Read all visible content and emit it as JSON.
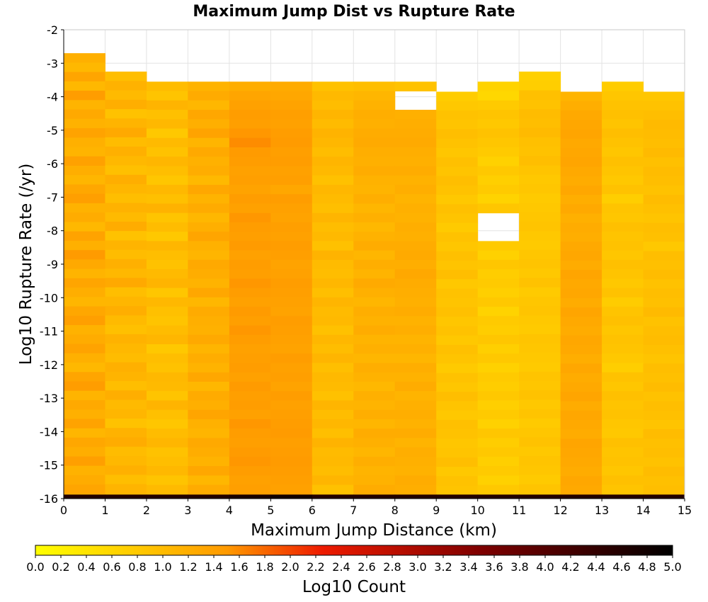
{
  "chart_data": {
    "type": "heatmap",
    "title": "Maximum Jump Dist vs Rupture Rate",
    "xlabel": "Maximum Jump Distance (km)",
    "ylabel": "Log10 Rupture Rate (/yr)",
    "xlim": [
      0,
      15
    ],
    "ylim": [
      -16,
      -2
    ],
    "x_bin_width": 1,
    "y_bin_height": 0.28,
    "x_ticks": [
      "0",
      "1",
      "2",
      "3",
      "4",
      "5",
      "6",
      "7",
      "8",
      "9",
      "10",
      "11",
      "12",
      "13",
      "14",
      "15"
    ],
    "y_ticks": [
      "-2",
      "-3",
      "-4",
      "-5",
      "-6",
      "-7",
      "-8",
      "-9",
      "-10",
      "-11",
      "-12",
      "-13",
      "-14",
      "-15",
      "-16"
    ],
    "grid": true,
    "colorbar": {
      "label": "Log10 Count",
      "range": [
        0.0,
        5.0
      ],
      "colors": [
        "#ffff00",
        "#ff9a00",
        "#ee1b00",
        "#7e0000",
        "#000000"
      ],
      "color_stops": [
        0.0,
        0.3,
        0.45,
        0.7,
        1.0
      ],
      "tick_labels": [
        "0.0",
        "0.2",
        "0.4",
        "0.6",
        "0.8",
        "1.0",
        "1.2",
        "1.4",
        "1.6",
        "1.8",
        "2.0",
        "2.2",
        "2.4",
        "2.6",
        "2.8",
        "3.0",
        "3.2",
        "3.4",
        "3.6",
        "3.8",
        "4.0",
        "4.2",
        "4.4",
        "4.6",
        "4.8",
        "5.0"
      ]
    },
    "columns": [
      {
        "x": 0,
        "top": -2.7,
        "base": 1.3,
        "pattern": [
          0.3,
          0.1,
          0.55,
          0.1,
          0.75,
          0.2,
          0.45,
          0.25,
          0.6,
          0.3,
          0.2,
          0.65,
          0.35,
          0.15,
          0.5,
          0.7,
          0.25,
          0.4,
          0.1,
          0.6,
          0.3,
          0.8,
          0.45,
          0.2,
          0.55,
          0.35,
          0.15,
          0.5,
          0.7,
          0.25,
          0.4,
          0.6,
          0.3,
          0.1,
          0.55,
          0.75,
          0.2,
          0.45,
          0.3,
          0.6,
          0.15,
          0.5,
          0.35,
          0.7,
          0.25,
          0.4,
          0.55,
          0.2,
          0.6
        ]
      },
      {
        "x": 1,
        "top": -3.25,
        "base": 1.15,
        "pattern": [
          0.2,
          0.5,
          0.3,
          0.6,
          0.1,
          0.45,
          0.7,
          0.25,
          0.55,
          0.35,
          0.15,
          0.6,
          0.4,
          0.2,
          0.5,
          0.3,
          0.65,
          0.1,
          0.45,
          0.25,
          0.55,
          0.35,
          0.7,
          0.2,
          0.4,
          0.6,
          0.3,
          0.15,
          0.5,
          0.35,
          0.25,
          0.55,
          0.45,
          0.2,
          0.6,
          0.3,
          0.4,
          0.1,
          0.5,
          0.65,
          0.25,
          0.35,
          0.55,
          0.2,
          0.45,
          0.3,
          0.6,
          0.15,
          0.5
        ]
      },
      {
        "x": 2,
        "top": -3.55,
        "base": 1.05,
        "pattern": [
          0.4,
          0.2,
          0.6,
          0.3,
          0.5,
          0.1,
          0.45,
          0.25,
          0.55,
          0.35,
          0.15,
          0.5,
          0.3,
          0.65,
          0.2,
          0.4,
          0.1,
          0.55,
          0.35,
          0.25,
          0.45,
          0.6,
          0.15,
          0.5,
          0.3,
          0.2,
          0.4,
          0.55,
          0.1,
          0.35,
          0.25,
          0.5,
          0.45,
          0.2,
          0.6,
          0.3,
          0.15,
          0.4,
          0.55,
          0.25,
          0.35,
          0.5,
          0.2,
          0.45,
          0.3,
          0.6,
          0.1,
          0.4,
          0.5
        ]
      },
      {
        "x": 3,
        "top": -3.55,
        "base": 1.25,
        "pattern": [
          0.3,
          0.5,
          0.2,
          0.6,
          0.4,
          0.7,
          0.25,
          0.55,
          0.35,
          0.45,
          0.15,
          0.6,
          0.3,
          0.5,
          0.2,
          0.4,
          0.65,
          0.35,
          0.25,
          0.55,
          0.45,
          0.3,
          0.6,
          0.2,
          0.5,
          0.4,
          0.35,
          0.55,
          0.25,
          0.45,
          0.3,
          0.6,
          0.2,
          0.5,
          0.4,
          0.65,
          0.35,
          0.25,
          0.55,
          0.45,
          0.3,
          0.6,
          0.2,
          0.5,
          0.4,
          0.35,
          0.55,
          0.25,
          0.45
        ]
      },
      {
        "x": 4,
        "top": -3.55,
        "base": 1.4,
        "pattern": [
          0.2,
          0.4,
          0.5,
          0.6,
          0.55,
          0.7,
          0.8,
          0.65,
          0.6,
          0.5,
          0.55,
          0.45,
          0.6,
          0.5,
          0.7,
          0.6,
          0.55,
          0.65,
          0.5,
          0.6,
          0.55,
          0.7,
          0.6,
          0.5,
          0.65,
          0.55,
          0.7,
          0.6,
          0.5,
          0.55,
          0.6,
          0.5,
          0.65,
          0.55,
          0.6,
          0.5,
          0.7,
          0.6,
          0.55,
          0.65,
          0.7,
          0.6,
          0.5,
          0.55,
          0.65,
          0.6,
          0.5,
          0.55,
          0.6
        ]
      },
      {
        "x": 5,
        "top": -3.55,
        "base": 1.4,
        "pattern": [
          0.25,
          0.35,
          0.45,
          0.55,
          0.5,
          0.6,
          0.65,
          0.55,
          0.6,
          0.5,
          0.55,
          0.35,
          0.6,
          0.5,
          0.45,
          0.55,
          0.5,
          0.6,
          0.55,
          0.45,
          0.5,
          0.6,
          0.55,
          0.5,
          0.45,
          0.6,
          0.55,
          0.5,
          0.45,
          0.6,
          0.5,
          0.55,
          0.45,
          0.6,
          0.5,
          0.55,
          0.6,
          0.65,
          0.55,
          0.6,
          0.65,
          0.6,
          0.55,
          0.5,
          0.6,
          0.55,
          0.5,
          0.6,
          0.55
        ]
      },
      {
        "x": 6,
        "top": -3.55,
        "base": 1.1,
        "pattern": [
          0.2,
          0.4,
          0.3,
          0.5,
          0.35,
          0.55,
          0.45,
          0.3,
          0.5,
          0.4,
          0.2,
          0.45,
          0.35,
          0.25,
          0.5,
          0.3,
          0.4,
          0.2,
          0.55,
          0.35,
          0.3,
          0.45,
          0.25,
          0.5,
          0.35,
          0.4,
          0.2,
          0.45,
          0.3,
          0.5,
          0.25,
          0.4,
          0.35,
          0.2,
          0.5,
          0.3,
          0.45,
          0.25,
          0.55,
          0.35,
          0.4,
          0.3,
          0.5,
          0.2,
          0.45,
          0.35,
          0.25,
          0.4,
          0.3
        ]
      },
      {
        "x": 7,
        "top": -3.55,
        "base": 1.2,
        "pattern": [
          0.1,
          0.3,
          0.4,
          0.5,
          0.45,
          0.55,
          0.6,
          0.5,
          0.45,
          0.55,
          0.4,
          0.35,
          0.5,
          0.3,
          0.45,
          0.25,
          0.4,
          0.55,
          0.3,
          0.5,
          0.35,
          0.6,
          0.45,
          0.3,
          0.5,
          0.4,
          0.55,
          0.35,
          0.45,
          0.3,
          0.5,
          0.4,
          0.25,
          0.45,
          0.35,
          0.5,
          0.3,
          0.55,
          0.45,
          0.3,
          0.5,
          0.35,
          0.4,
          0.55,
          0.3,
          0.45,
          0.35,
          0.5,
          0.4
        ]
      },
      {
        "x": 8,
        "top": -3.55,
        "base": 1.2,
        "pattern": [
          0.0,
          0.1,
          0.35,
          0.45,
          0.5,
          0.55,
          0.6,
          0.5,
          0.45,
          0.55,
          0.4,
          0.5,
          0.35,
          0.45,
          0.4,
          0.5,
          0.45,
          0.55,
          0.6,
          0.5,
          0.65,
          0.55,
          0.5,
          0.45,
          0.55,
          0.4,
          0.5,
          0.35,
          0.45,
          0.3,
          0.5,
          0.4,
          0.55,
          0.35,
          0.45,
          0.5,
          0.4,
          0.55,
          0.35,
          0.5,
          0.45,
          0.4,
          0.55,
          0.5,
          0.35,
          0.45,
          0.4,
          0.5,
          0.45
        ]
      },
      {
        "x": 9,
        "top": -3.85,
        "base": 1.0,
        "pattern": [
          0.1,
          0.2,
          0.35,
          0.3,
          0.45,
          0.35,
          0.25,
          0.4,
          0.3,
          0.45,
          0.35,
          0.2,
          0.4,
          0.3,
          0.15,
          0.35,
          0.25,
          0.4,
          0.3,
          0.45,
          0.2,
          0.35,
          0.3,
          0.4,
          0.25,
          0.35,
          0.2,
          0.4,
          0.3,
          0.15,
          0.35,
          0.25,
          0.45,
          0.3,
          0.2,
          0.4,
          0.35,
          0.25,
          0.3,
          0.45,
          0.2,
          0.35,
          0.3,
          0.4,
          0.25,
          0.35,
          0.3,
          0.2,
          0.4
        ]
      },
      {
        "x": 10,
        "top": -3.55,
        "base": 0.9,
        "pattern": [
          0.1,
          0.0,
          0.3,
          0.45,
          0.35,
          0.5,
          0.4,
          0.3,
          0.15,
          0.35,
          0.2,
          0.3,
          0.1,
          0.4,
          0.25,
          0.35,
          0.2,
          0.3,
          0.15,
          0.4,
          0.25,
          0.3,
          0.2,
          0.35,
          0.1,
          0.3,
          0.25,
          0.4,
          0.2,
          0.35,
          0.15,
          0.3,
          0.25,
          0.35,
          0.2,
          0.3,
          0.15,
          0.4,
          0.25,
          0.35,
          0.2,
          0.3,
          0.15,
          0.35,
          0.25,
          0.3,
          0.2,
          0.35,
          0.3
        ]
      },
      {
        "x": 11,
        "top": -3.25,
        "base": 1.0,
        "pattern": [
          0.0,
          0.05,
          0.4,
          0.35,
          0.5,
          0.45,
          0.55,
          0.4,
          0.35,
          0.45,
          0.3,
          0.2,
          0.25,
          0.15,
          0.2,
          0.25,
          0.3,
          0.2,
          0.15,
          0.25,
          0.3,
          0.2,
          0.35,
          0.15,
          0.25,
          0.3,
          0.2,
          0.15,
          0.3,
          0.25,
          0.2,
          0.15,
          0.3,
          0.25,
          0.35,
          0.2,
          0.3,
          0.15,
          0.25,
          0.35,
          0.2,
          0.3,
          0.25,
          0.15,
          0.3,
          0.2,
          0.25,
          0.35,
          0.3
        ]
      },
      {
        "x": 12,
        "top": -3.85,
        "base": 1.3,
        "pattern": [
          0.2,
          0.35,
          0.45,
          0.5,
          0.55,
          0.45,
          0.5,
          0.55,
          0.45,
          0.4,
          0.5,
          0.35,
          0.45,
          0.3,
          0.4,
          0.35,
          0.45,
          0.5,
          0.4,
          0.55,
          0.45,
          0.5,
          0.4,
          0.55,
          0.45,
          0.4,
          0.5,
          0.45,
          0.35,
          0.5,
          0.4,
          0.45,
          0.55,
          0.4,
          0.5,
          0.45,
          0.4,
          0.55,
          0.5,
          0.45,
          0.4,
          0.5,
          0.45,
          0.35,
          0.5,
          0.4,
          0.45,
          0.5,
          0.4
        ]
      },
      {
        "x": 13,
        "top": -3.55,
        "base": 1.0,
        "pattern": [
          0.1,
          0.25,
          0.35,
          0.4,
          0.3,
          0.45,
          0.35,
          0.25,
          0.4,
          0.3,
          0.2,
          0.35,
          0.05,
          0.3,
          0.25,
          0.4,
          0.3,
          0.35,
          0.25,
          0.4,
          0.3,
          0.2,
          0.35,
          0.1,
          0.3,
          0.4,
          0.25,
          0.35,
          0.3,
          0.2,
          0.05,
          0.35,
          0.25,
          0.4,
          0.3,
          0.35,
          0.25,
          0.2,
          0.4,
          0.3,
          0.35,
          0.25,
          0.4,
          0.3,
          0.2,
          0.35,
          0.25,
          0.3,
          0.35
        ]
      },
      {
        "x": 14,
        "top": -3.85,
        "base": 1.05,
        "pattern": [
          0.15,
          0.25,
          0.35,
          0.45,
          0.4,
          0.35,
          0.45,
          0.3,
          0.4,
          0.35,
          0.25,
          0.4,
          0.3,
          0.2,
          0.35,
          0.3,
          0.1,
          0.35,
          0.3,
          0.4,
          0.25,
          0.35,
          0.3,
          0.45,
          0.25,
          0.35,
          0.4,
          0.3,
          0.2,
          0.35,
          0.3,
          0.4,
          0.25,
          0.35,
          0.3,
          0.2,
          0.4,
          0.3,
          0.35,
          0.25,
          0.4,
          0.3,
          0.35,
          0.25,
          0.4,
          0.3,
          0.2,
          0.35,
          0.3
        ]
      }
    ],
    "holes": [
      {
        "x": 8,
        "y0": -4.15,
        "y1": -3.85
      },
      {
        "x": 10,
        "y0": -8.1,
        "y1": -7.5
      }
    ],
    "bottom_row": {
      "y0": -16,
      "y1": -15.88,
      "values": [
        4.6,
        4.6,
        4.6,
        4.6,
        4.7,
        4.8,
        4.6,
        4.6,
        4.6,
        4.6,
        4.6,
        4.6,
        4.6,
        4.6,
        4.6
      ]
    }
  }
}
